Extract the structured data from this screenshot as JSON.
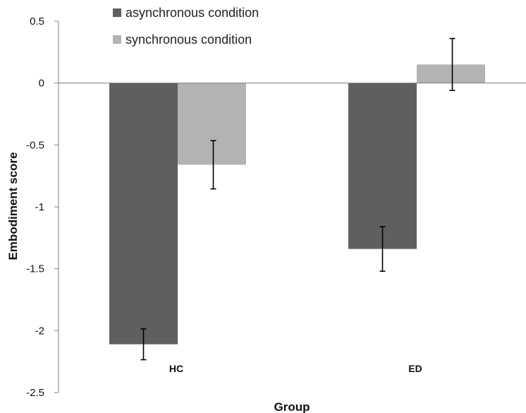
{
  "chart_data": {
    "type": "bar",
    "title": "",
    "xlabel": "Group",
    "ylabel": "Embodiment score",
    "categories": [
      "HC",
      "ED"
    ],
    "series": [
      {
        "name": "asynchronous condition",
        "color": "#5f5f5f",
        "values": [
          -2.11,
          -1.34
        ],
        "error": [
          0.125,
          0.18
        ]
      },
      {
        "name": "synchronous condition",
        "color": "#b3b3b3",
        "values": [
          -0.66,
          0.15
        ],
        "error": [
          0.195,
          0.21
        ]
      }
    ],
    "ylim": [
      -2.5,
      0.5
    ],
    "yticks": [
      0.5,
      0,
      -0.5,
      -1,
      -1.5,
      -2,
      -2.5
    ],
    "ytick_labels": [
      "0.5",
      "0",
      "-0.5",
      "-1",
      "-1.5",
      "-2",
      "-2.5"
    ],
    "grid": false,
    "legend_position": "top-left",
    "error_bars": true
  }
}
